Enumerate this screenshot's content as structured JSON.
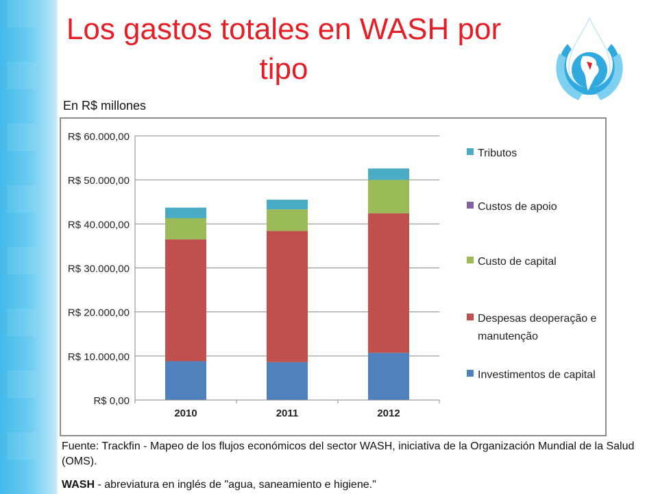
{
  "slide": {
    "title": "Los gastos totales en WASH por tipo",
    "unit_note": "En R$ millones",
    "source_note": "Fuente: Trackfin - Mapeo de los flujos económicos del sector WASH, iniciativa de la Organización Mundial de la Salud (OMS).",
    "wash_abbr": "WASH",
    "wash_definition": " - abreviatura en inglés de \"agua, saneamiento e higiene.\""
  },
  "chart_data": {
    "type": "bar",
    "stacked": true,
    "categories": [
      "2010",
      "2011",
      "2012"
    ],
    "series": [
      {
        "name": "Investimentos de capital",
        "color": "#4f81bd",
        "values": [
          8800,
          8600,
          10700
        ]
      },
      {
        "name": "Despesas deoperação e manutenção",
        "color": "#c0504d",
        "values": [
          27700,
          29800,
          31700
        ]
      },
      {
        "name": "Custo de capital",
        "color": "#9bbb59",
        "values": [
          4800,
          4900,
          7600
        ]
      },
      {
        "name": "Custos de apoio",
        "color": "#8064a2",
        "values": [
          0,
          0,
          0
        ]
      },
      {
        "name": "Tributos",
        "color": "#4bacc6",
        "values": [
          2400,
          2200,
          2600
        ]
      }
    ],
    "legend_order": [
      "Tributos",
      "Custos de apoio",
      "Custo de capital",
      "Despesas deoperação e manutenção",
      "Investimentos de capital"
    ],
    "legend_position": "right",
    "ylim": [
      0,
      60000
    ],
    "yticks": [
      0,
      10000,
      20000,
      30000,
      40000,
      50000,
      60000
    ],
    "ytick_labels": [
      "R$ 0,00",
      "R$ 10.000,00",
      "R$ 20.000,00",
      "R$ 30.000,00",
      "R$ 40.000,00",
      "R$ 50.000,00",
      "R$ 60.000,00"
    ],
    "grid": true
  }
}
